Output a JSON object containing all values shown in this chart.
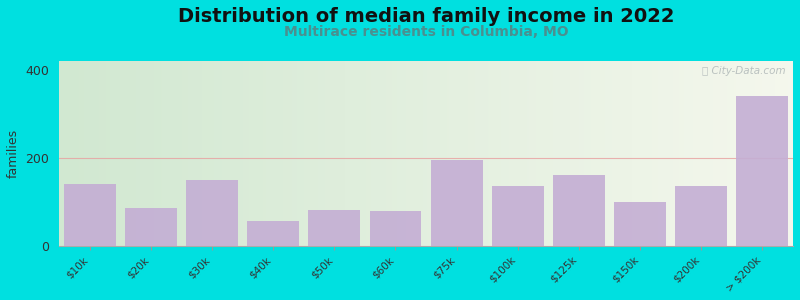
{
  "title": "Distribution of median family income in 2022",
  "subtitle": "Multirace residents in Columbia, MO",
  "categories": [
    "$10k",
    "$20k",
    "$30k",
    "$40k",
    "$50k",
    "$60k",
    "$75k",
    "$100k",
    "$125k",
    "$150k",
    "$200k",
    "> $200k"
  ],
  "values": [
    140,
    85,
    150,
    55,
    80,
    78,
    195,
    135,
    160,
    100,
    135,
    340
  ],
  "bar_color": "#c4aed4",
  "background_outer": "#00e0e0",
  "ylabel": "families",
  "ylim": [
    0,
    420
  ],
  "yticks": [
    0,
    200,
    400
  ],
  "watermark": "Ⓢ City-Data.com",
  "title_fontsize": 14,
  "subtitle_fontsize": 10,
  "subtitle_color": "#4a9090",
  "hline_color": "#e8a0a0",
  "hline_y": 200
}
